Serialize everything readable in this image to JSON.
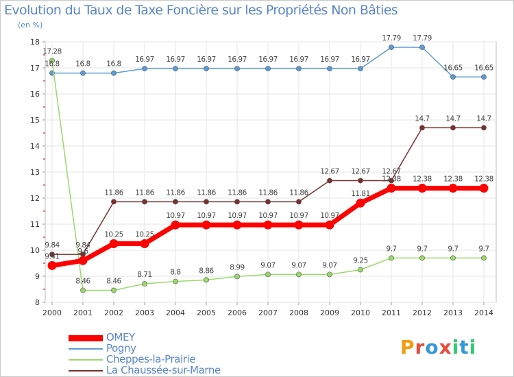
{
  "title": "Evolution du Taux de Taxe Foncière sur les Propriétés Non Bâties",
  "subtitle": "(en %)",
  "logo": {
    "text": "Proxiti",
    "letters": [
      "P",
      "r",
      "o",
      "x",
      "i",
      "t",
      "i"
    ],
    "colors": [
      "#f39c12",
      "#e74c3c",
      "#3498db",
      "#e74c3c",
      "#2ecc71",
      "#3498db",
      "#2ecc71"
    ]
  },
  "chart_data": {
    "type": "line",
    "x": [
      "2000",
      "2001",
      "2002",
      "2003",
      "2004",
      "2005",
      "2006",
      "2007",
      "2008",
      "2009",
      "2010",
      "2011",
      "2012",
      "2013",
      "2014"
    ],
    "ylim": [
      8,
      18
    ],
    "yticks": [
      8,
      9,
      10,
      11,
      12,
      13,
      14,
      15,
      16,
      17,
      18
    ],
    "grid": true,
    "legend_position": "bottom-left",
    "series": [
      {
        "name": "OMEY",
        "color": "#ff0000",
        "values": [
          9.41,
          9.6,
          10.25,
          10.25,
          10.97,
          10.97,
          10.97,
          10.97,
          10.97,
          10.97,
          11.81,
          12.38,
          12.38,
          12.38,
          12.38
        ],
        "labels": [
          "9.41",
          "9.6",
          "10.25",
          "10.25",
          "10.97",
          "10.97",
          "10.97",
          "10.97",
          "10.97",
          "10.97",
          "11.81",
          "12.38",
          "12.38",
          "12.38",
          "12.38"
        ]
      },
      {
        "name": "Pogny",
        "color": "#5b9bd5",
        "values": [
          16.8,
          16.8,
          16.8,
          16.97,
          16.97,
          16.97,
          16.97,
          16.97,
          16.97,
          16.97,
          16.97,
          17.79,
          17.79,
          16.65,
          16.65
        ],
        "labels": [
          "16.8",
          "16.8",
          "16.8",
          "16.97",
          "16.97",
          "16.97",
          "16.97",
          "16.97",
          "16.97",
          "16.97",
          "16.97",
          "17.79",
          "17.79",
          "16.65",
          "16.65"
        ]
      },
      {
        "name": "Cheppes-la-Prairie",
        "color": "#9ad86a",
        "values": [
          17.28,
          8.46,
          8.46,
          8.71,
          8.8,
          8.86,
          8.99,
          9.07,
          9.07,
          9.07,
          9.25,
          9.7,
          9.7,
          9.7,
          9.7
        ],
        "labels": [
          "17.28",
          "8.46",
          "8.46",
          "8.71",
          "8.8",
          "8.86",
          "8.99",
          "9.07",
          "9.07",
          "9.07",
          "9.25",
          "9.7",
          "9.7",
          "9.7",
          "9.7"
        ]
      },
      {
        "name": "La Chaussée-sur-Marne",
        "color": "#7a2f2f",
        "values": [
          9.84,
          9.84,
          11.86,
          11.86,
          11.86,
          11.86,
          11.86,
          11.86,
          11.86,
          12.67,
          12.67,
          12.67,
          14.7,
          14.7,
          14.7
        ],
        "labels": [
          "9.84",
          "9.84",
          "11.86",
          "11.86",
          "11.86",
          "11.86",
          "11.86",
          "11.86",
          "11.86",
          "12.67",
          "12.67",
          "12.67",
          "14.7",
          "14.7",
          "14.7"
        ]
      }
    ]
  }
}
